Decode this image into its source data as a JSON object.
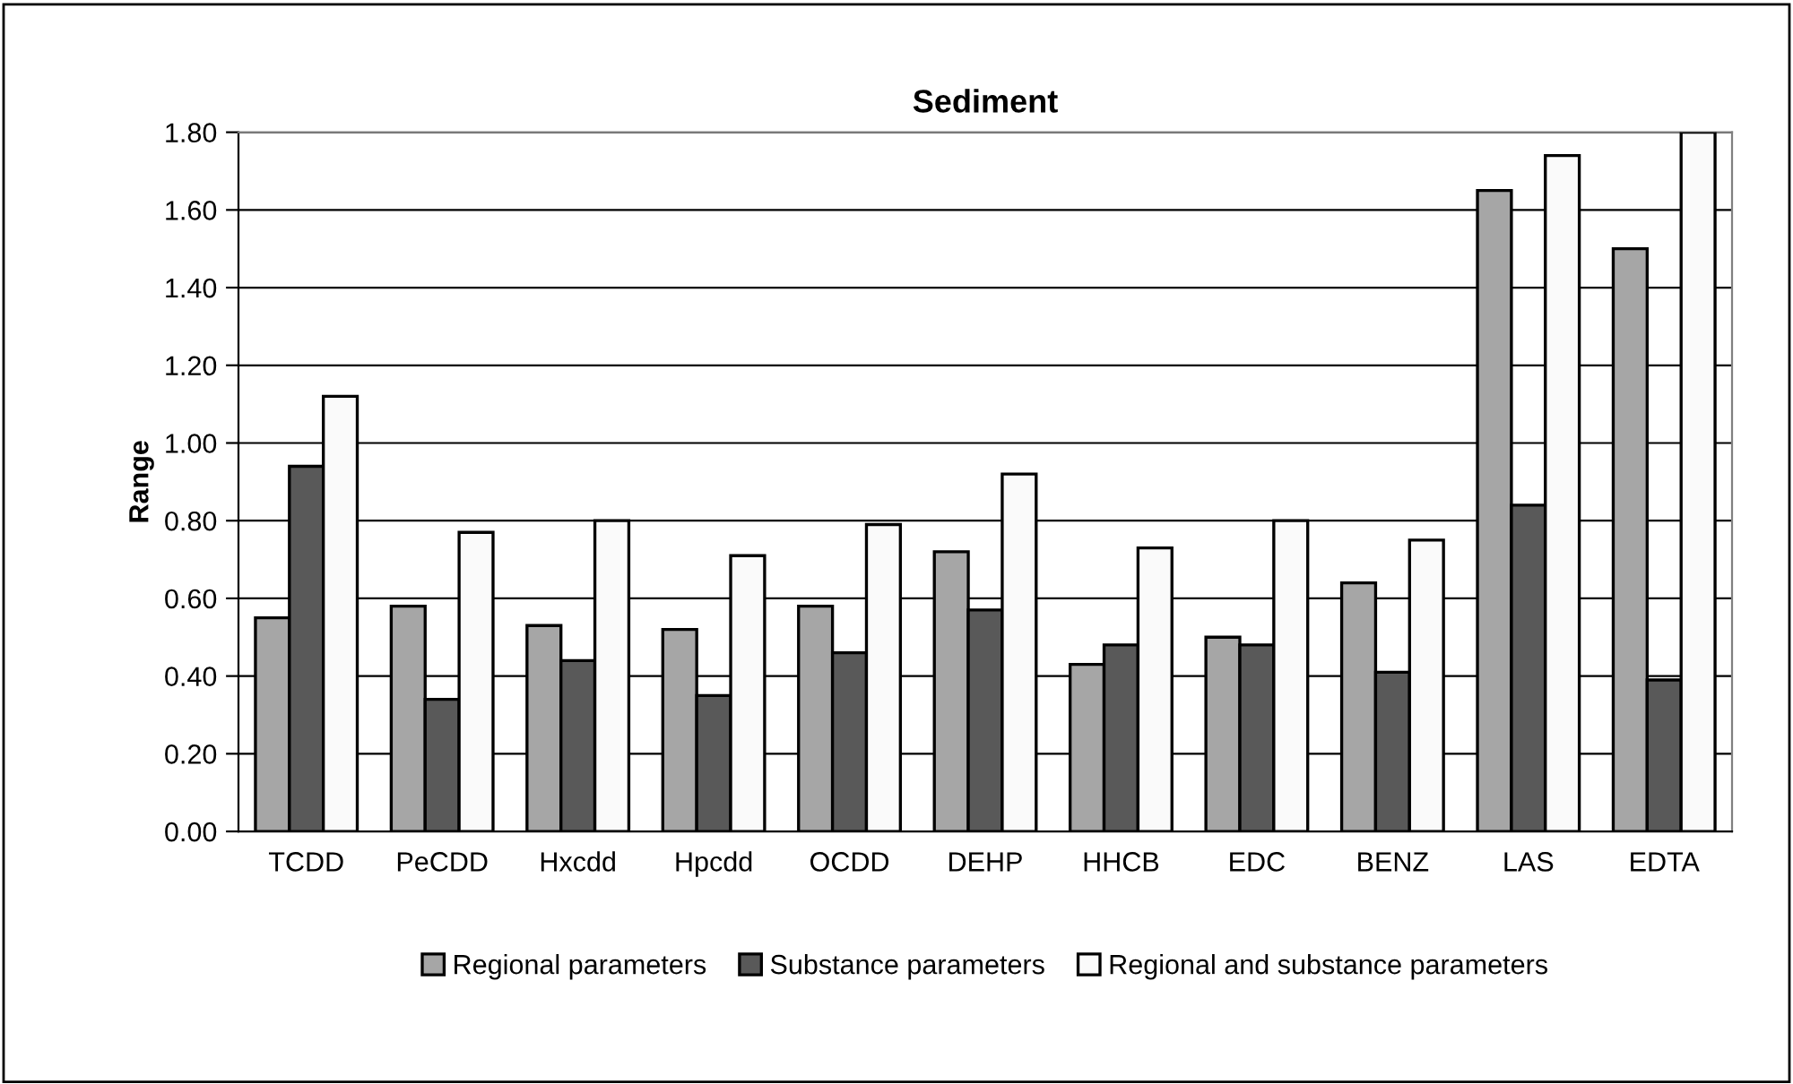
{
  "chart_data": {
    "type": "bar",
    "title": "Sediment",
    "ylabel": "Range",
    "categories": [
      "TCDD",
      "PeCDD",
      "Hxcdd",
      "Hpcdd",
      "OCDD",
      "DEHP",
      "HHCB",
      "EDC",
      "BENZ",
      "LAS",
      "EDTA"
    ],
    "series": [
      {
        "name": "Regional parameters",
        "color": "#a6a6a6",
        "values": [
          0.55,
          0.58,
          0.53,
          0.52,
          0.58,
          0.72,
          0.43,
          0.5,
          0.64,
          1.65,
          1.5
        ]
      },
      {
        "name": "Substance parameters",
        "color": "#595959",
        "values": [
          0.94,
          0.34,
          0.44,
          0.35,
          0.46,
          0.57,
          0.48,
          0.48,
          0.41,
          0.84,
          0.39
        ]
      },
      {
        "name": "Regional and substance parameters",
        "color": "#fafafa",
        "values": [
          1.12,
          0.77,
          0.8,
          0.71,
          0.79,
          0.92,
          0.73,
          0.8,
          0.75,
          1.74,
          1.8
        ]
      }
    ],
    "ylim": [
      0,
      1.8
    ],
    "yticks": [
      {
        "value": 0,
        "label": "0.00"
      },
      {
        "value": 0.2,
        "label": "0.20"
      },
      {
        "value": 0.4,
        "label": "0.40"
      },
      {
        "value": 0.6,
        "label": "0.60"
      },
      {
        "value": 0.8,
        "label": "0.80"
      },
      {
        "value": 1.0,
        "label": "1.00"
      },
      {
        "value": 1.2,
        "label": "1.20"
      },
      {
        "value": 1.4,
        "label": "1.40"
      },
      {
        "value": 1.6,
        "label": "1.60"
      },
      {
        "value": 1.8,
        "label": "1.80"
      }
    ],
    "grid": "y",
    "legend": "bottom"
  }
}
